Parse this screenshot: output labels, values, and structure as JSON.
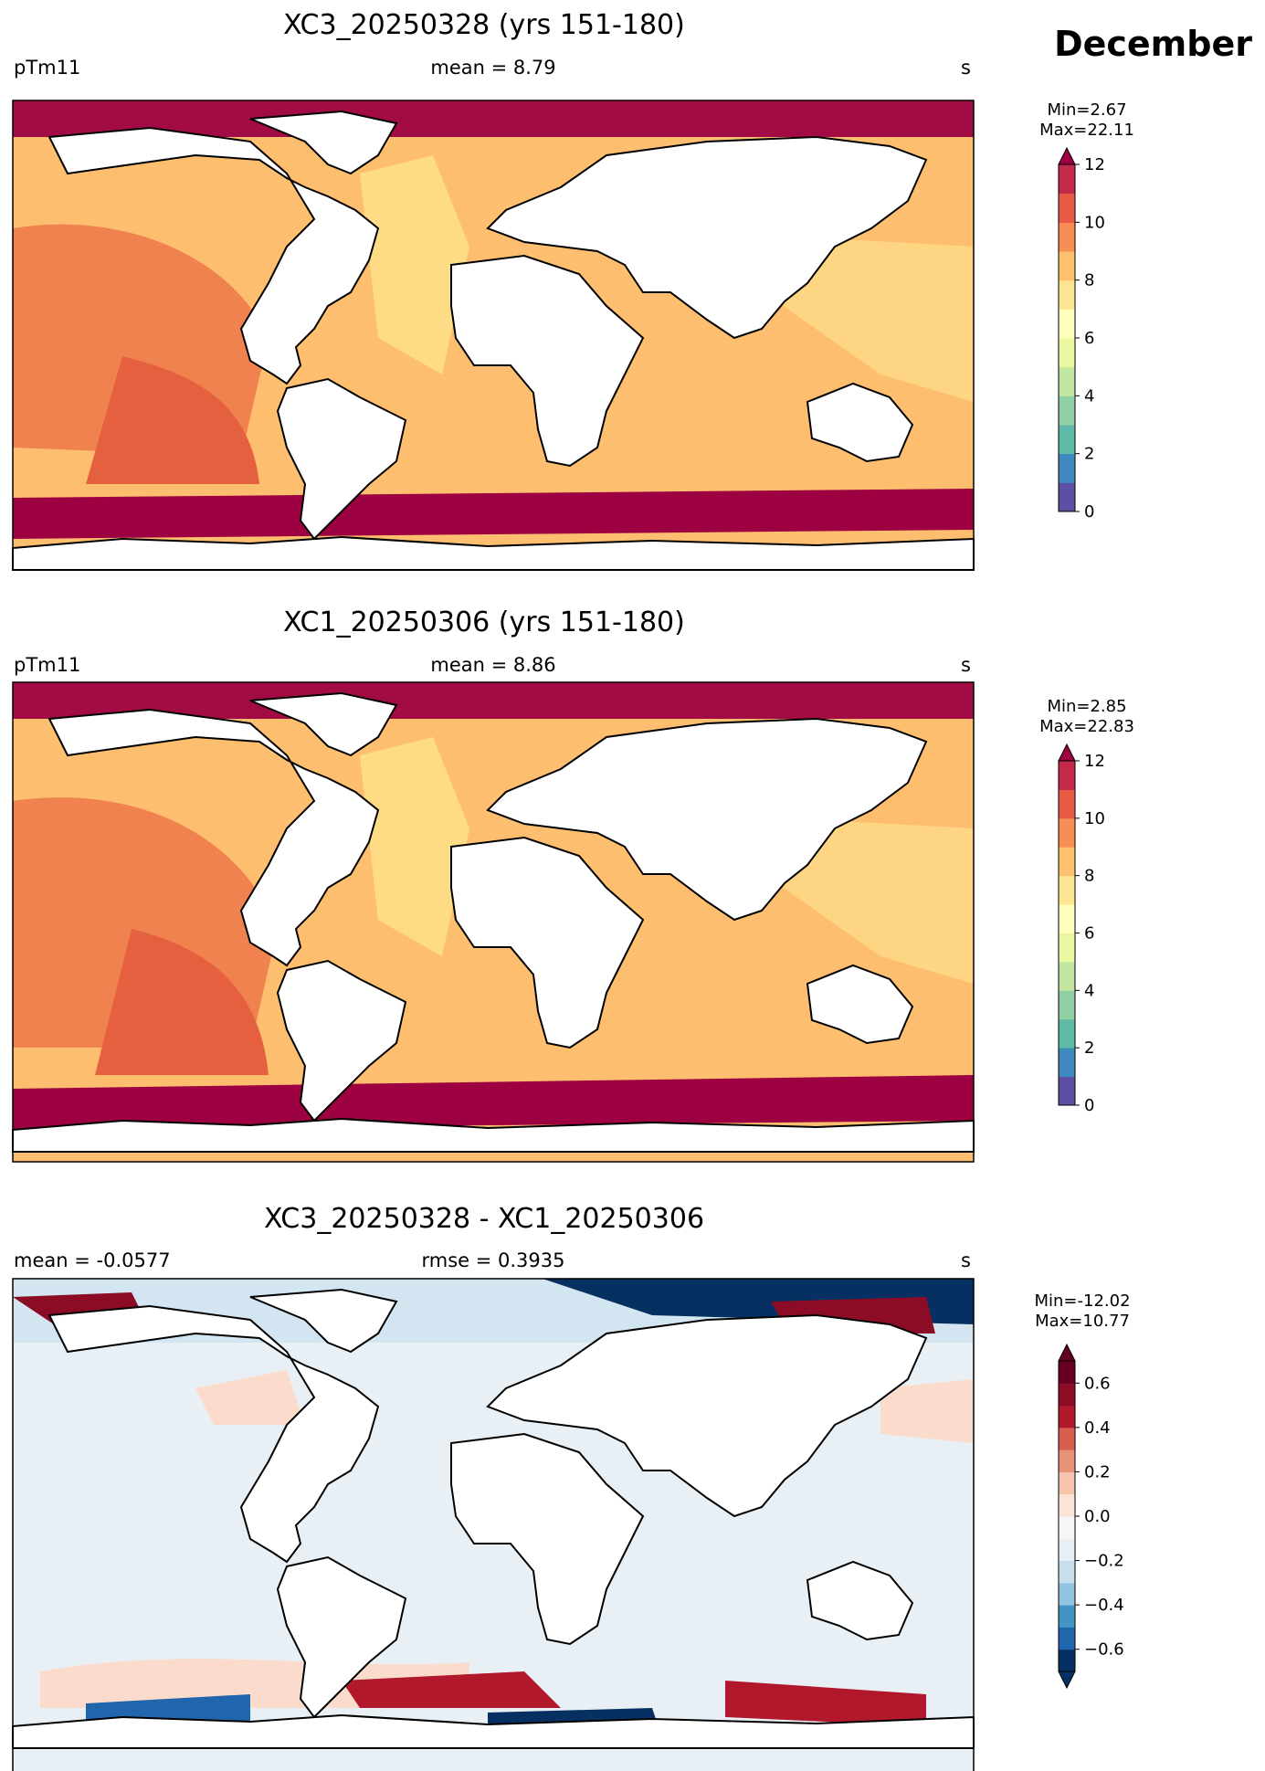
{
  "header": {
    "month": "December"
  },
  "panels": [
    {
      "title": "XC3_20250328 (yrs 151-180)",
      "left": "pTm11",
      "center": "mean = 8.79",
      "right": "s",
      "minmax": [
        "Min=2.67",
        "Max=22.11"
      ]
    },
    {
      "title": "XC1_20250306 (yrs 151-180)",
      "left": "pTm11",
      "center": "mean = 8.86",
      "right": "s",
      "minmax": [
        "Min=2.85",
        "Max=22.83"
      ]
    },
    {
      "title": "XC3_20250328 - XC1_20250306",
      "left": "mean = -0.0577",
      "center": "rmse = 0.3935",
      "right": "s",
      "minmax": [
        "Min=-12.02",
        "Max=10.77"
      ]
    }
  ],
  "chart_data": [
    {
      "type": "heatmap",
      "title": "XC3_20250328 (yrs 151-180)",
      "variable": "pTm11",
      "units": "s",
      "mean": 8.79,
      "min": 2.67,
      "max": 22.11,
      "colorbar": {
        "levels": [
          0,
          1,
          2,
          3,
          4,
          5,
          6,
          7,
          8,
          9,
          10,
          11,
          12
        ],
        "tick_labels": [
          "0",
          "2",
          "4",
          "6",
          "8",
          "10",
          "12"
        ],
        "extend": "max",
        "colormap": "Spectral_r",
        "colors": [
          "#5e4fa2",
          "#3e89be",
          "#5fbaa7",
          "#8fd0a4",
          "#c2e69f",
          "#ebf7a0",
          "#fffebe",
          "#fee593",
          "#fdc06d",
          "#f88e53",
          "#e85a46",
          "#c2294a",
          "#9e0142"
        ]
      }
    },
    {
      "type": "heatmap",
      "title": "XC1_20250306 (yrs 151-180)",
      "variable": "pTm11",
      "units": "s",
      "mean": 8.86,
      "min": 2.85,
      "max": 22.83,
      "colorbar": {
        "levels": [
          0,
          1,
          2,
          3,
          4,
          5,
          6,
          7,
          8,
          9,
          10,
          11,
          12
        ],
        "tick_labels": [
          "0",
          "2",
          "4",
          "6",
          "8",
          "10",
          "12"
        ],
        "extend": "max",
        "colormap": "Spectral_r",
        "colors": [
          "#5e4fa2",
          "#3e89be",
          "#5fbaa7",
          "#8fd0a4",
          "#c2e69f",
          "#ebf7a0",
          "#fffebe",
          "#fee593",
          "#fdc06d",
          "#f88e53",
          "#e85a46",
          "#c2294a",
          "#9e0142"
        ]
      }
    },
    {
      "type": "heatmap",
      "title": "XC3_20250328 - XC1_20250306",
      "units": "s",
      "mean": -0.0577,
      "rmse": 0.3935,
      "min": -12.02,
      "max": 10.77,
      "colorbar": {
        "levels": [
          -0.7,
          -0.6,
          -0.5,
          -0.4,
          -0.3,
          -0.2,
          -0.1,
          0.0,
          0.1,
          0.2,
          0.3,
          0.4,
          0.5,
          0.6,
          0.7
        ],
        "tick_labels": [
          "−0.6",
          "−0.4",
          "−0.2",
          "0.0",
          "0.2",
          "0.4",
          "0.6"
        ],
        "tick_values": [
          -0.6,
          -0.4,
          -0.2,
          0.0,
          0.2,
          0.4,
          0.6
        ],
        "extend": "both",
        "colormap": "RdBu_r",
        "colors": [
          "#053061",
          "#2166ac",
          "#4393c3",
          "#92c5de",
          "#c7dfec",
          "#e5eff5",
          "#f7f7f7",
          "#fbe4d6",
          "#f6c5ad",
          "#e89377",
          "#d6604d",
          "#b2182b",
          "#8c0c25",
          "#67001f",
          "#4d0015",
          "#053061",
          "#67001f"
        ]
      }
    }
  ]
}
